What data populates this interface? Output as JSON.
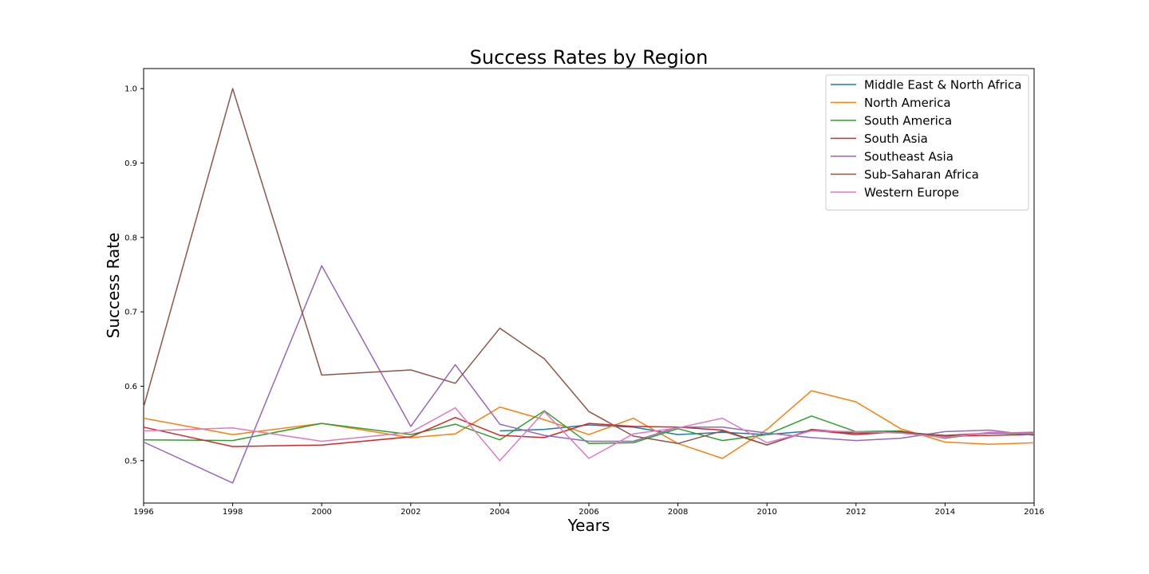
{
  "chart_data": {
    "type": "line",
    "title": "Success Rates by Region",
    "xlabel": "Years",
    "ylabel": "Success Rate",
    "xlim": [
      1996,
      2016
    ],
    "ylim": [
      0.443,
      1.027
    ],
    "xticks": [
      1996,
      1998,
      2000,
      2002,
      2004,
      2006,
      2008,
      2010,
      2012,
      2014,
      2016
    ],
    "yticks": [
      0.5,
      0.6,
      0.7,
      0.8,
      0.9,
      1.0
    ],
    "ytick_labels": [
      "0.5",
      "0.6",
      "0.7",
      "0.8",
      "0.9",
      "1.0"
    ],
    "grid": false,
    "legend_position": "top-right",
    "series": [
      {
        "name": "Middle East & North Africa",
        "color": "#1f77b4",
        "x": [
          2004,
          2005,
          2006,
          2007,
          2008,
          2009,
          2010,
          2011,
          2012,
          2013,
          2014,
          2015,
          2016
        ],
        "y": [
          0.54,
          0.542,
          0.548,
          0.545,
          0.535,
          0.538,
          0.535,
          0.54,
          0.537,
          0.538,
          0.533,
          0.537,
          0.536
        ]
      },
      {
        "name": "North America",
        "color": "#ff7f0e",
        "x": [
          1996,
          1998,
          2000,
          2002,
          2003,
          2004,
          2005,
          2006,
          2007,
          2008,
          2009,
          2010,
          2011,
          2012,
          2013,
          2014,
          2015,
          2016
        ],
        "y": [
          0.557,
          0.535,
          0.55,
          0.531,
          0.536,
          0.572,
          0.555,
          0.535,
          0.557,
          0.523,
          0.503,
          0.542,
          0.594,
          0.579,
          0.543,
          0.525,
          0.522,
          0.524
        ]
      },
      {
        "name": "South America",
        "color": "#2ca02c",
        "x": [
          1996,
          1998,
          2000,
          2002,
          2003,
          2004,
          2005,
          2006,
          2007,
          2008,
          2009,
          2010,
          2011,
          2012,
          2013,
          2014,
          2015,
          2016
        ],
        "y": [
          0.528,
          0.527,
          0.55,
          0.535,
          0.549,
          0.528,
          0.567,
          0.523,
          0.524,
          0.543,
          0.527,
          0.535,
          0.56,
          0.539,
          0.54,
          0.53,
          0.538,
          0.535
        ]
      },
      {
        "name": "South Asia",
        "color": "#d62728",
        "x": [
          1996,
          1998,
          2000,
          2002,
          2003,
          2004,
          2005,
          2006,
          2007,
          2008,
          2009,
          2010,
          2011,
          2012,
          2013,
          2014,
          2015,
          2016
        ],
        "y": [
          0.545,
          0.519,
          0.521,
          0.532,
          0.558,
          0.534,
          0.531,
          0.55,
          0.546,
          0.545,
          0.541,
          0.521,
          0.541,
          0.535,
          0.539,
          0.533,
          0.534,
          0.535
        ]
      },
      {
        "name": "Southeast Asia",
        "color": "#9467bd",
        "x": [
          1996,
          1998,
          2000,
          2002,
          2003,
          2004,
          2005,
          2006,
          2007,
          2008,
          2009,
          2010,
          2011,
          2012,
          2013,
          2014,
          2015,
          2016
        ],
        "y": [
          0.525,
          0.47,
          0.762,
          0.546,
          0.629,
          0.549,
          0.534,
          0.526,
          0.526,
          0.545,
          0.545,
          0.537,
          0.531,
          0.527,
          0.53,
          0.539,
          0.541,
          0.534
        ]
      },
      {
        "name": "Sub-Saharan Africa",
        "color": "#8c564b",
        "x": [
          1996,
          1998,
          2000,
          2002,
          2003,
          2004,
          2005,
          2006,
          2007,
          2008,
          2009,
          2010,
          2011,
          2012,
          2013,
          2014,
          2015,
          2016
        ],
        "y": [
          0.572,
          1.0,
          0.615,
          0.622,
          0.604,
          0.678,
          0.637,
          0.566,
          0.533,
          0.523,
          0.54,
          0.521,
          0.542,
          0.537,
          0.538,
          0.534,
          0.537,
          0.538
        ]
      },
      {
        "name": "Western Europe",
        "color": "#e377c2",
        "x": [
          1996,
          1998,
          2000,
          2002,
          2003,
          2004,
          2005,
          2006,
          2007,
          2008,
          2009,
          2010,
          2011,
          2012,
          2013,
          2014,
          2015,
          2016
        ],
        "y": [
          0.54,
          0.544,
          0.526,
          0.538,
          0.571,
          0.5,
          0.566,
          0.503,
          0.536,
          0.544,
          0.557,
          0.524,
          0.54,
          0.539,
          0.537,
          0.531,
          0.538,
          0.537
        ]
      }
    ]
  }
}
